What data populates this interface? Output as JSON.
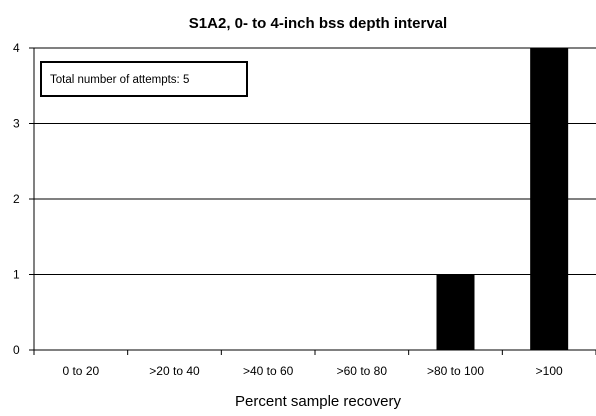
{
  "chart_data": {
    "type": "bar",
    "title": "S1A2,  0- to 4-inch bss depth interval",
    "xlabel": "Percent sample recovery",
    "ylabel": "",
    "categories": [
      "0 to 20",
      ">20 to 40",
      ">40 to 60",
      ">60 to 80",
      ">80 to 100",
      ">100"
    ],
    "values": [
      0,
      0,
      0,
      0,
      1,
      4
    ],
    "ylim": [
      0,
      4
    ],
    "yticks": [
      "0",
      "1",
      "2",
      "3",
      "4"
    ],
    "grid": true,
    "bar_color": "#000000",
    "annotation": "Total number of attempts:   5"
  }
}
